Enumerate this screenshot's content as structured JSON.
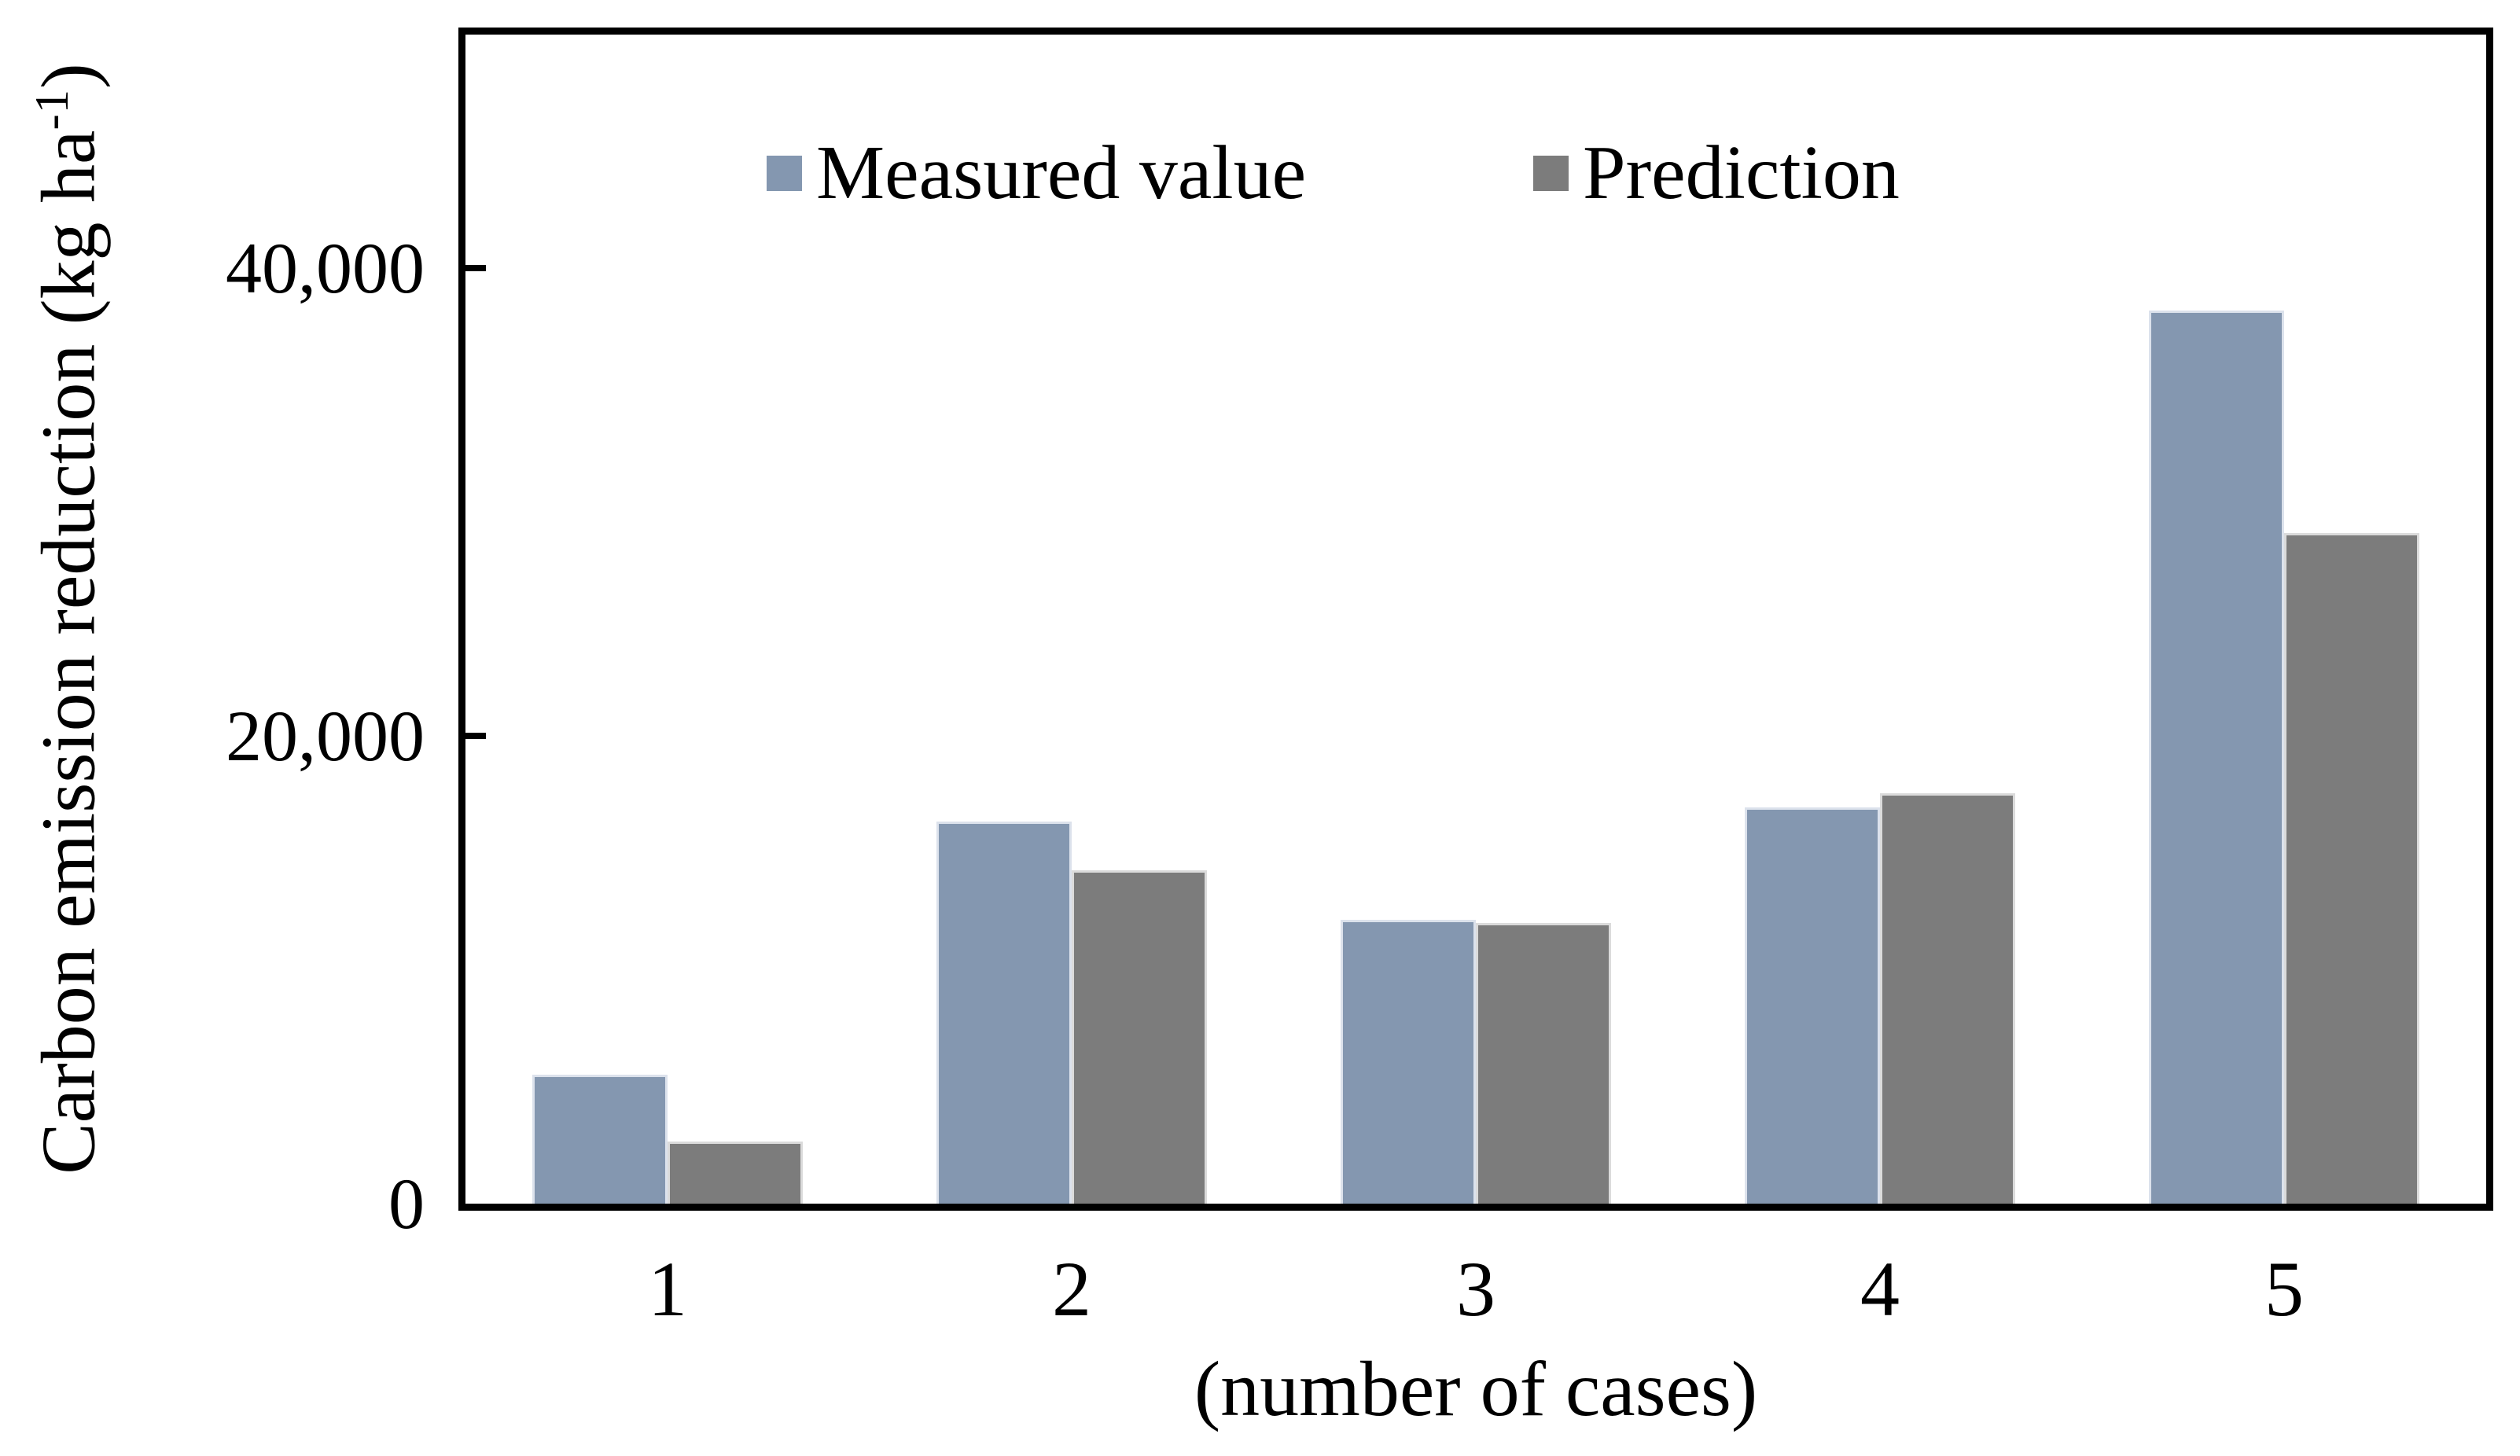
{
  "chart_data": {
    "type": "bar",
    "title": "",
    "categories": [
      "1",
      "2",
      "3",
      "4",
      "5"
    ],
    "series": [
      {
        "name": "Measured value",
        "color": "#8497B0",
        "edge_color": "#DCE2EC",
        "values": [
          5500,
          16350,
          12150,
          16950,
          38200
        ]
      },
      {
        "name": "Prediction",
        "color": "#7C7C7C",
        "edge_color": "#DBDBDB",
        "values": [
          2650,
          14250,
          12000,
          17550,
          28700
        ]
      }
    ],
    "xlabel": "(number of cases)",
    "ylabel": "Carbon emission reduction (kg ha⁻¹)",
    "ylim": [
      0,
      50000
    ],
    "y_tick_interval": 20000,
    "y_ticks": [
      {
        "value": 0,
        "label": "0"
      },
      {
        "value": 20000,
        "label": "20,000"
      },
      {
        "value": 40000,
        "label": "40,000"
      }
    ],
    "legend_position": "top-inside",
    "grid": false,
    "axis_color": "#000000",
    "background_color": "#FFFFFF"
  },
  "ui": {
    "y_axis_label_parts": {
      "prefix": "Carbon emission reduction (kg ha",
      "superscript": "-1",
      "suffix": ")"
    }
  }
}
